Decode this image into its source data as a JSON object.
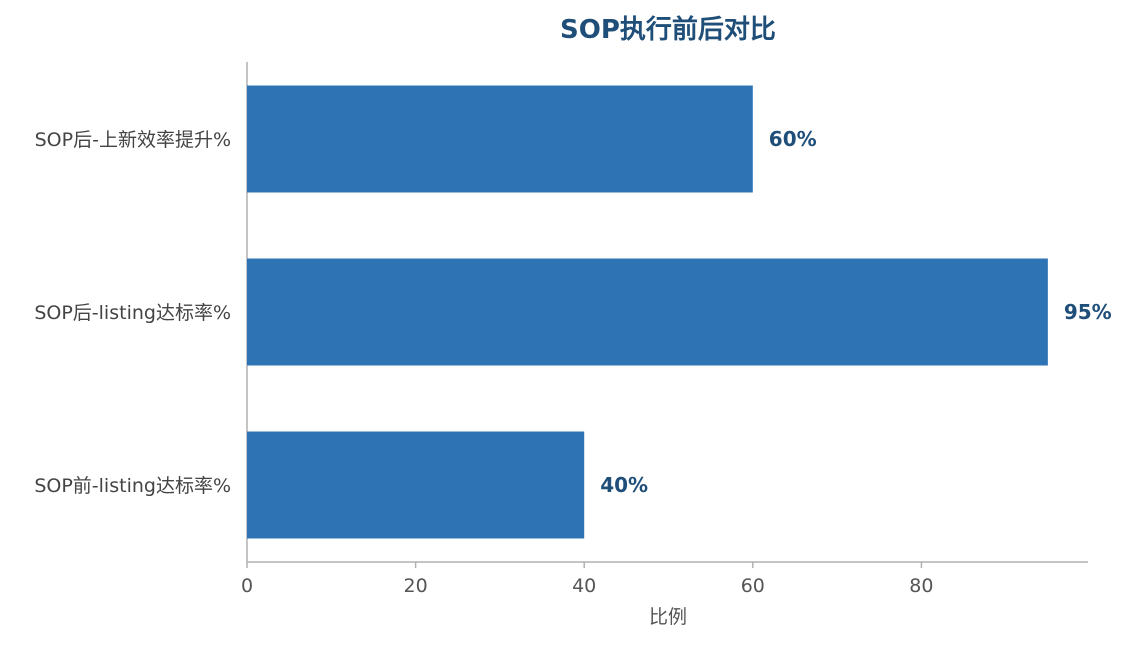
{
  "chart_data": {
    "type": "bar",
    "orientation": "horizontal",
    "title": "SOP执行前后对比",
    "xlabel": "比例",
    "ylabel": "",
    "categories": [
      "SOP前-listing达标率%",
      "SOP后-listing达标率%",
      "SOP后-上新效率提升%"
    ],
    "values": [
      40,
      95,
      60
    ],
    "value_labels": [
      "40%",
      "95%",
      "60%"
    ],
    "xlim": [
      0,
      100
    ],
    "xticks": [
      0,
      20,
      40,
      60,
      80
    ],
    "grid": false,
    "colors": {
      "bar": "#2e74b5",
      "title": "#1f4e79",
      "value_label": "#1f4e79",
      "axis": "#b0b0b0"
    }
  }
}
